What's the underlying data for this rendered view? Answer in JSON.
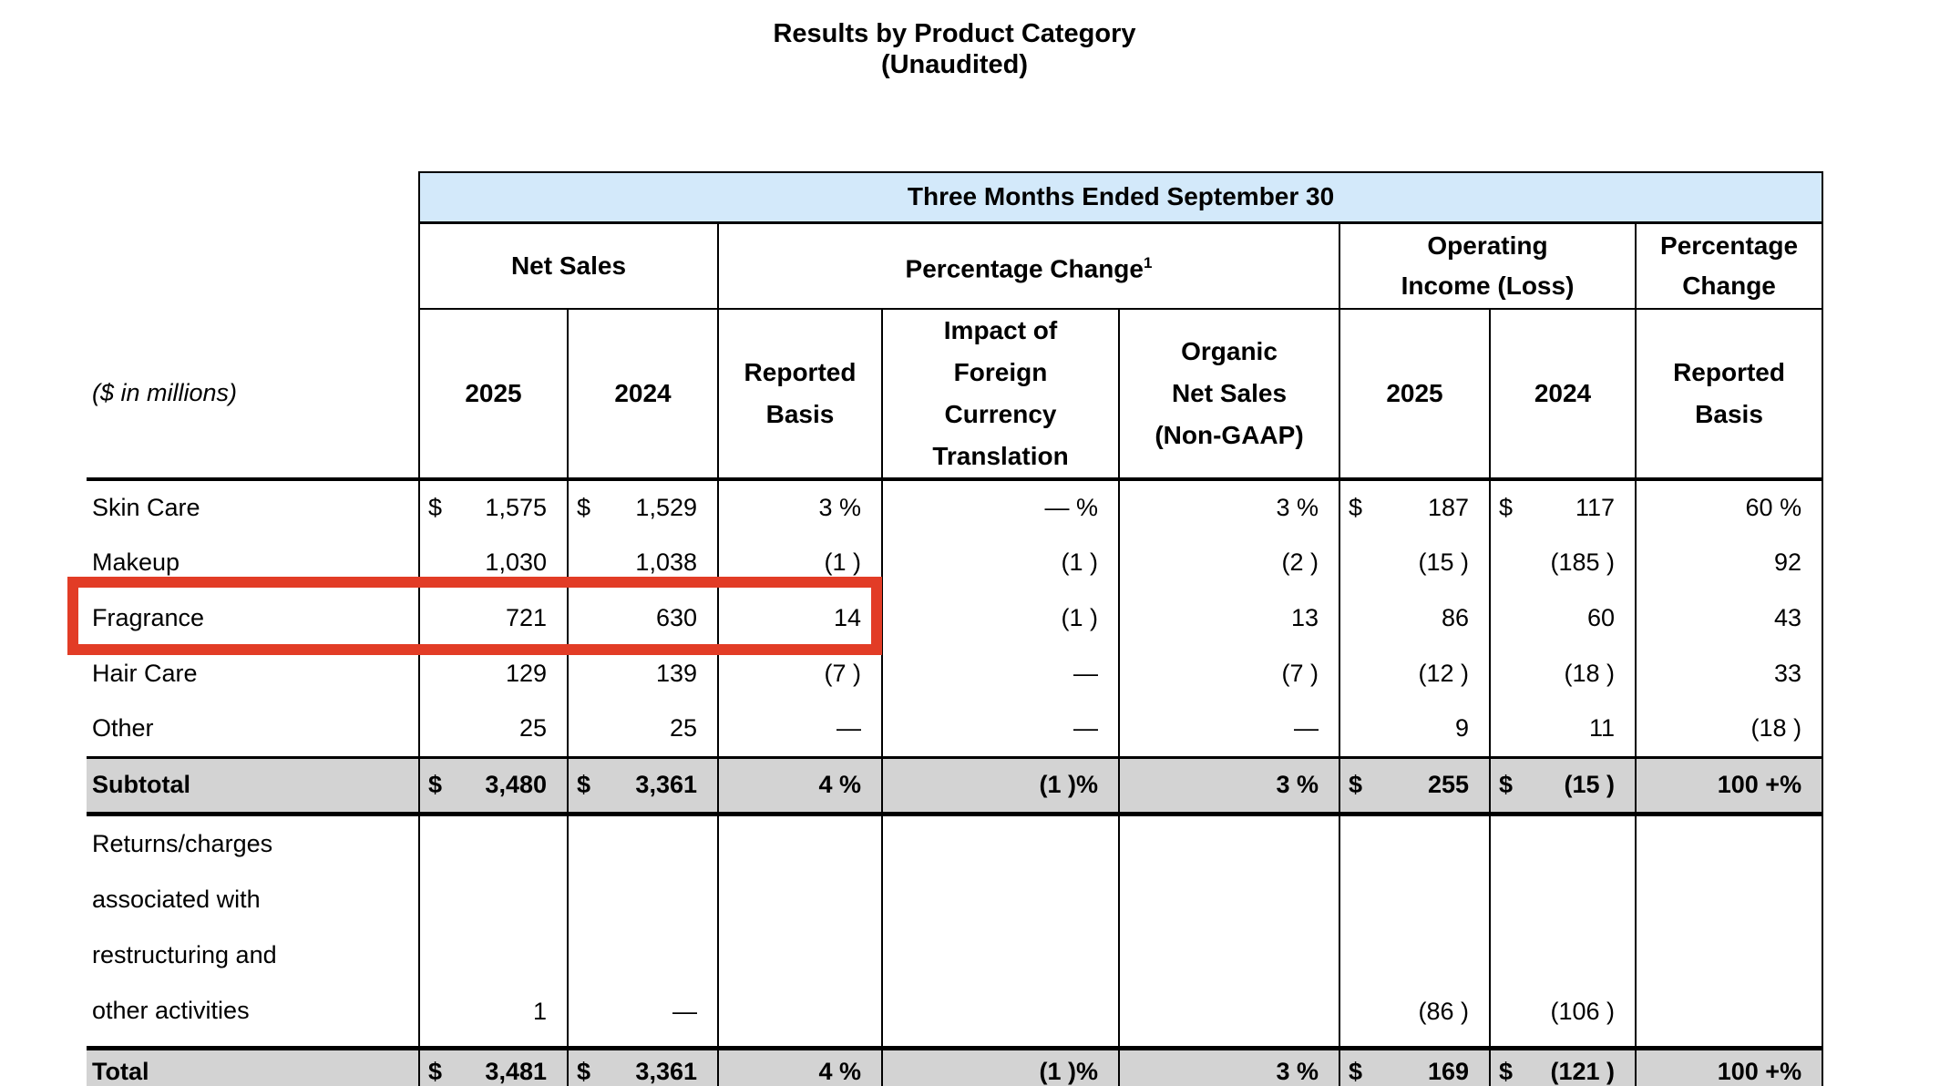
{
  "page": {
    "title_line1": "Results by Product Category",
    "title_line2": "(Unaudited)"
  },
  "colors": {
    "header_blue": "#d3e9fa",
    "shade_gray": "#d3d3d3",
    "highlight_red": "#e23c26",
    "border": "#000000"
  },
  "table": {
    "span_header": "Three Months Ended September 30",
    "groups": {
      "net_sales": "Net Sales",
      "percentage_change": "Percentage Change",
      "percentage_change_sup": "1",
      "operating_income": "Operating\nIncome (Loss)",
      "percentage_change_reported": "Percentage\nChange"
    },
    "corner_label": "($ in millions)",
    "columns": [
      "2025",
      "2024",
      "Reported\nBasis",
      "Impact of\nForeign\nCurrency\nTranslation",
      "Organic\nNet Sales\n(Non-GAAP)",
      "2025",
      "2024",
      "Reported\nBasis"
    ],
    "rows": [
      {
        "label": "Skin Care",
        "cells": [
          {
            "d": "$",
            "v": "1,575"
          },
          {
            "d": "$",
            "v": "1,529"
          },
          {
            "v": "3 %"
          },
          {
            "v": "— %"
          },
          {
            "v": "3 %"
          },
          {
            "d": "$",
            "v": "187"
          },
          {
            "d": "$",
            "v": "117"
          },
          {
            "v": "60 %"
          }
        ]
      },
      {
        "label": "Makeup",
        "cells": [
          {
            "v": "1,030"
          },
          {
            "v": "1,038"
          },
          {
            "v": "(1 )"
          },
          {
            "v": "(1 )"
          },
          {
            "v": "(2 )"
          },
          {
            "v": "(15 )"
          },
          {
            "v": "(185 )"
          },
          {
            "v": "92"
          }
        ]
      },
      {
        "label": "Fragrance",
        "highlighted": true,
        "cells": [
          {
            "v": "721"
          },
          {
            "v": "630"
          },
          {
            "v": "14"
          },
          {
            "v": "(1 )"
          },
          {
            "v": "13"
          },
          {
            "v": "86"
          },
          {
            "v": "60"
          },
          {
            "v": "43"
          }
        ]
      },
      {
        "label": "Hair Care",
        "cells": [
          {
            "v": "129"
          },
          {
            "v": "139"
          },
          {
            "v": "(7 )"
          },
          {
            "v": "—"
          },
          {
            "v": "(7 )"
          },
          {
            "v": "(12 )"
          },
          {
            "v": "(18 )"
          },
          {
            "v": "33"
          }
        ]
      },
      {
        "label": "Other",
        "cells": [
          {
            "v": "25"
          },
          {
            "v": "25"
          },
          {
            "v": "—"
          },
          {
            "v": "—"
          },
          {
            "v": "—"
          },
          {
            "v": "9"
          },
          {
            "v": "11"
          },
          {
            "v": "(18 )"
          }
        ]
      },
      {
        "label": "Subtotal",
        "class": "subtotal",
        "bold": true,
        "cells": [
          {
            "d": "$",
            "v": "3,480"
          },
          {
            "d": "$",
            "v": "3,361"
          },
          {
            "v": "4 %"
          },
          {
            "v": "(1 )%"
          },
          {
            "v": "3 %"
          },
          {
            "d": "$",
            "v": "255"
          },
          {
            "d": "$",
            "v": "(15 )"
          },
          {
            "v": "100 +%"
          }
        ]
      },
      {
        "label": "Returns/charges\nassociated with\nrestructuring and\nother activities",
        "class": "returns",
        "cells": [
          {
            "v": "1"
          },
          {
            "v": "—"
          },
          {
            "v": ""
          },
          {
            "v": ""
          },
          {
            "v": ""
          },
          {
            "v": "(86 )"
          },
          {
            "v": "(106 )"
          },
          {
            "v": ""
          }
        ]
      },
      {
        "label": "Total",
        "class": "total",
        "bold": true,
        "cells": [
          {
            "d": "$",
            "v": "3,481"
          },
          {
            "d": "$",
            "v": "3,361"
          },
          {
            "v": "4 %"
          },
          {
            "v": "(1 )%"
          },
          {
            "v": "3 %"
          },
          {
            "d": "$",
            "v": "169"
          },
          {
            "d": "$",
            "v": "(121 )"
          },
          {
            "v": "100 +%"
          }
        ]
      }
    ],
    "highlight_annotation": {
      "target_row": "Fragrance",
      "covers_columns": [
        "label",
        "Net Sales 2025",
        "Net Sales 2024",
        "Reported Basis"
      ],
      "color": "#e23c26"
    }
  }
}
